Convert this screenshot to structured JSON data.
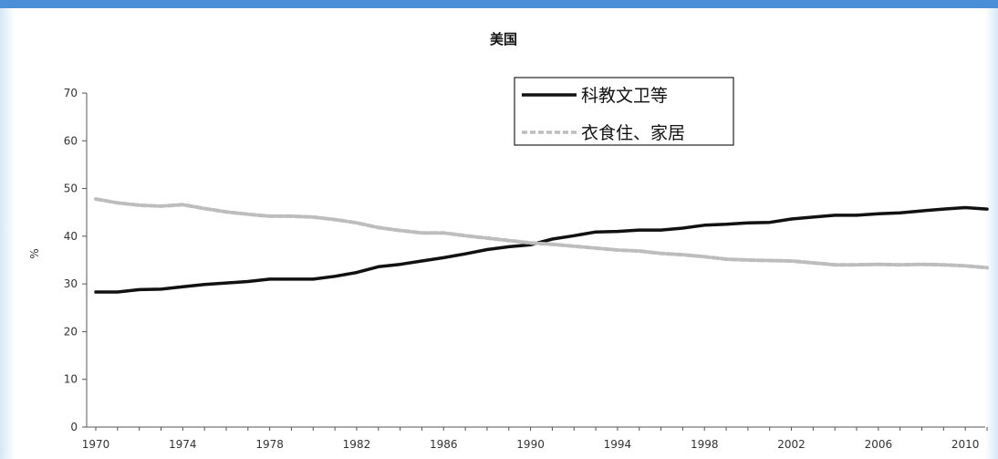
{
  "chart_data": {
    "type": "line",
    "title": "美国",
    "xlabel": "",
    "ylabel": "%",
    "xlim": [
      1970,
      2011
    ],
    "ylim": [
      0,
      70
    ],
    "y_ticks": [
      0,
      10,
      20,
      30,
      40,
      50,
      60,
      70
    ],
    "x_tick_labels": [
      "1970",
      "1974",
      "1978",
      "1982",
      "1986",
      "1990",
      "1994",
      "1998",
      "2002",
      "2006",
      "2010"
    ],
    "grid": false,
    "legend_position": "top-center",
    "x": [
      1970,
      1971,
      1972,
      1973,
      1974,
      1975,
      1976,
      1977,
      1978,
      1979,
      1980,
      1981,
      1982,
      1983,
      1984,
      1985,
      1986,
      1987,
      1988,
      1989,
      1990,
      1991,
      1992,
      1993,
      1994,
      1995,
      1996,
      1997,
      1998,
      1999,
      2000,
      2001,
      2002,
      2003,
      2004,
      2005,
      2006,
      2007,
      2008,
      2009,
      2010,
      2011
    ],
    "series": [
      {
        "name": "科教文卫等",
        "color": "#111111",
        "style": "solid",
        "values": [
          28.3,
          28.3,
          28.8,
          28.9,
          29.4,
          29.9,
          30.2,
          30.5,
          31.0,
          31.0,
          31.0,
          31.6,
          32.4,
          33.6,
          34.1,
          34.8,
          35.5,
          36.3,
          37.2,
          37.8,
          38.2,
          39.4,
          40.1,
          40.9,
          41.0,
          41.3,
          41.3,
          41.7,
          42.3,
          42.5,
          42.8,
          42.9,
          43.6,
          44.0,
          44.4,
          44.4,
          44.7,
          44.9,
          45.3,
          45.7,
          46.0,
          45.7
        ]
      },
      {
        "name": "衣食住、家居",
        "color": "#bdbdbd",
        "style": "dashed",
        "values": [
          47.8,
          47.0,
          46.5,
          46.3,
          46.6,
          45.8,
          45.1,
          44.6,
          44.2,
          44.2,
          44.0,
          43.5,
          42.8,
          41.8,
          41.2,
          40.7,
          40.7,
          40.1,
          39.6,
          39.1,
          38.6,
          38.3,
          37.9,
          37.5,
          37.1,
          36.9,
          36.4,
          36.1,
          35.7,
          35.2,
          35.0,
          34.9,
          34.8,
          34.4,
          34.0,
          34.0,
          34.1,
          34.0,
          34.1,
          34.0,
          33.8,
          33.4
        ]
      }
    ]
  }
}
